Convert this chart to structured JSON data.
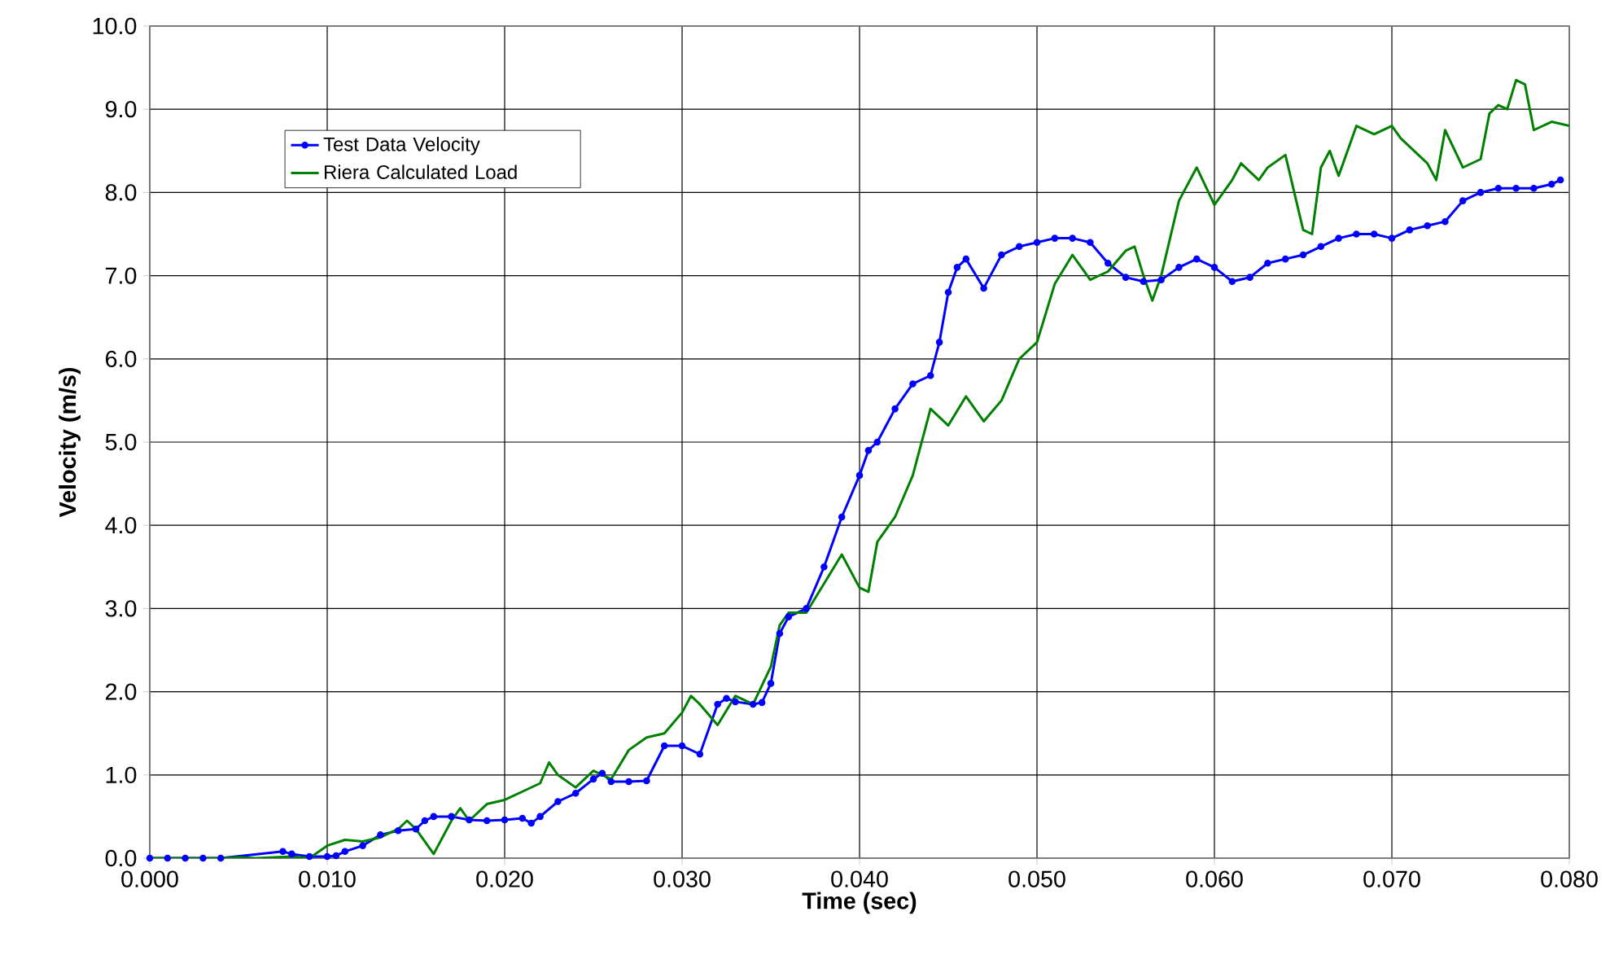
{
  "chart_data": {
    "type": "line",
    "xlabel": "Time (sec)",
    "ylabel": "Velocity (m/s)",
    "xlim": [
      0,
      0.08
    ],
    "ylim": [
      0,
      10
    ],
    "xticks": [
      {
        "value": 0,
        "label": "0.000"
      },
      {
        "value": 0.01,
        "label": "0.010"
      },
      {
        "value": 0.02,
        "label": "0.020"
      },
      {
        "value": 0.03,
        "label": "0.030"
      },
      {
        "value": 0.04,
        "label": "0.040"
      },
      {
        "value": 0.05,
        "label": "0.050"
      },
      {
        "value": 0.06,
        "label": "0.060"
      },
      {
        "value": 0.07,
        "label": "0.070"
      },
      {
        "value": 0.08,
        "label": "0.080"
      }
    ],
    "yticks": [
      {
        "value": 0,
        "label": "0.0"
      },
      {
        "value": 1,
        "label": "1.0"
      },
      {
        "value": 2,
        "label": "2.0"
      },
      {
        "value": 3,
        "label": "3.0"
      },
      {
        "value": 4,
        "label": "4.0"
      },
      {
        "value": 5,
        "label": "5.0"
      },
      {
        "value": 6,
        "label": "6.0"
      },
      {
        "value": 7,
        "label": "7.0"
      },
      {
        "value": 8,
        "label": "8.0"
      },
      {
        "value": 9,
        "label": "9.0"
      },
      {
        "value": 10,
        "label": "10.0"
      }
    ],
    "grid": true,
    "legend": "top left",
    "series": [
      {
        "name": "Test Data Velocity",
        "color": "#0000ff",
        "marker": "circle",
        "x": [
          0,
          0.001,
          0.002,
          0.003,
          0.004,
          0.0075,
          0.008,
          0.009,
          0.01,
          0.0105,
          0.011,
          0.012,
          0.013,
          0.014,
          0.015,
          0.0155,
          0.016,
          0.017,
          0.018,
          0.019,
          0.02,
          0.021,
          0.0215,
          0.022,
          0.023,
          0.024,
          0.025,
          0.0255,
          0.026,
          0.027,
          0.028,
          0.029,
          0.03,
          0.031,
          0.032,
          0.0325,
          0.033,
          0.034,
          0.0345,
          0.035,
          0.0355,
          0.036,
          0.037,
          0.038,
          0.039,
          0.04,
          0.0405,
          0.041,
          0.042,
          0.043,
          0.044,
          0.0445,
          0.045,
          0.0455,
          0.046,
          0.047,
          0.048,
          0.049,
          0.05,
          0.051,
          0.052,
          0.053,
          0.054,
          0.055,
          0.056,
          0.057,
          0.058,
          0.059,
          0.06,
          0.061,
          0.062,
          0.063,
          0.064,
          0.065,
          0.066,
          0.067,
          0.068,
          0.069,
          0.07,
          0.071,
          0.072,
          0.073,
          0.074,
          0.075,
          0.076,
          0.077,
          0.078,
          0.079,
          0.0795
        ],
        "values": [
          0,
          0,
          0,
          0,
          0,
          0.08,
          0.05,
          0.02,
          0.02,
          0.03,
          0.08,
          0.15,
          0.28,
          0.33,
          0.35,
          0.45,
          0.5,
          0.5,
          0.46,
          0.45,
          0.46,
          0.48,
          0.42,
          0.5,
          0.68,
          0.78,
          0.95,
          1.02,
          0.92,
          0.92,
          0.93,
          1.35,
          1.35,
          1.25,
          1.85,
          1.92,
          1.88,
          1.85,
          1.87,
          2.1,
          2.7,
          2.9,
          3.0,
          3.5,
          4.1,
          4.6,
          4.9,
          5.0,
          5.4,
          5.7,
          5.8,
          6.2,
          6.8,
          7.1,
          7.2,
          6.85,
          7.25,
          7.35,
          7.4,
          7.45,
          7.45,
          7.4,
          7.15,
          6.98,
          6.93,
          6.95,
          7.1,
          7.2,
          7.1,
          6.93,
          6.98,
          7.15,
          7.2,
          7.25,
          7.35,
          7.45,
          7.5,
          7.5,
          7.45,
          7.55,
          7.6,
          7.65,
          7.9,
          8.0,
          8.05,
          8.05,
          8.05,
          8.1,
          8.15
        ]
      },
      {
        "name": "Riera Calculated Load",
        "color": "#008000",
        "marker": "none",
        "x": [
          0,
          0.004,
          0.005,
          0.006,
          0.008,
          0.009,
          0.01,
          0.011,
          0.012,
          0.013,
          0.014,
          0.0145,
          0.015,
          0.016,
          0.017,
          0.0175,
          0.018,
          0.019,
          0.02,
          0.021,
          0.022,
          0.0225,
          0.023,
          0.024,
          0.025,
          0.026,
          0.027,
          0.028,
          0.029,
          0.03,
          0.0305,
          0.031,
          0.032,
          0.033,
          0.034,
          0.035,
          0.0355,
          0.036,
          0.037,
          0.038,
          0.039,
          0.04,
          0.0405,
          0.041,
          0.042,
          0.043,
          0.044,
          0.045,
          0.046,
          0.047,
          0.048,
          0.049,
          0.05,
          0.051,
          0.052,
          0.053,
          0.054,
          0.055,
          0.0555,
          0.056,
          0.0565,
          0.057,
          0.058,
          0.059,
          0.06,
          0.061,
          0.0615,
          0.062,
          0.0625,
          0.063,
          0.064,
          0.065,
          0.0655,
          0.066,
          0.0665,
          0.067,
          0.068,
          0.069,
          0.07,
          0.0705,
          0.071,
          0.072,
          0.0725,
          0.073,
          0.074,
          0.075,
          0.0755,
          0.076,
          0.0765,
          0.077,
          0.0775,
          0.078,
          0.079,
          0.08
        ],
        "values": [
          0,
          0,
          0.01,
          0,
          0.02,
          0,
          0.15,
          0.22,
          0.2,
          0.25,
          0.35,
          0.45,
          0.35,
          0.05,
          0.45,
          0.6,
          0.45,
          0.65,
          0.7,
          0.8,
          0.9,
          1.15,
          1.0,
          0.85,
          1.05,
          0.95,
          1.3,
          1.45,
          1.5,
          1.75,
          1.95,
          1.85,
          1.6,
          1.95,
          1.85,
          2.3,
          2.8,
          2.95,
          2.95,
          3.3,
          3.65,
          3.25,
          3.2,
          3.8,
          4.1,
          4.6,
          5.4,
          5.2,
          5.55,
          5.25,
          5.5,
          6.0,
          6.2,
          6.9,
          7.25,
          6.95,
          7.05,
          7.3,
          7.35,
          7.0,
          6.7,
          7.0,
          7.9,
          8.3,
          7.85,
          8.15,
          8.35,
          8.25,
          8.15,
          8.3,
          8.45,
          7.55,
          7.5,
          8.3,
          8.5,
          8.2,
          8.8,
          8.7,
          8.8,
          8.65,
          8.55,
          8.35,
          8.15,
          8.75,
          8.3,
          8.4,
          8.95,
          9.05,
          9.0,
          9.35,
          9.3,
          8.75,
          8.85,
          8.8
        ]
      }
    ]
  }
}
